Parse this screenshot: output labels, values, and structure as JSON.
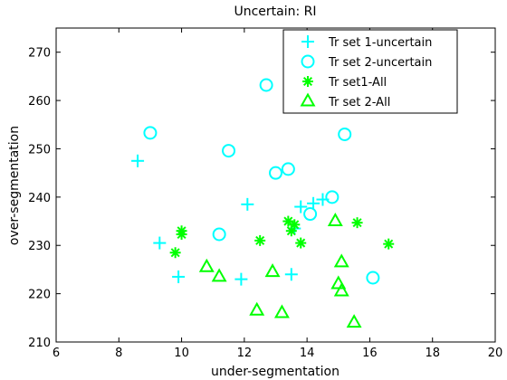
{
  "chart_data": {
    "type": "scatter",
    "title": "Uncertain: RI",
    "xlabel": "under-segmentation",
    "ylabel": "over-segmentation",
    "xlim": [
      6,
      20
    ],
    "ylim": [
      210,
      275
    ],
    "xticks": [
      "6",
      "8",
      "10",
      "12",
      "14",
      "16",
      "18",
      "20"
    ],
    "yticks": [
      "210",
      "220",
      "230",
      "240",
      "250",
      "260",
      "270"
    ],
    "grid": false,
    "legend_position": "top-right",
    "series": [
      {
        "name": "Tr set 1-uncertain",
        "marker": "plus",
        "color": "#00ffff",
        "points": [
          [
            8.6,
            247.5
          ],
          [
            9.3,
            230.5
          ],
          [
            9.9,
            223.5
          ],
          [
            11.9,
            223.0
          ],
          [
            12.1,
            238.5
          ],
          [
            13.5,
            224.0
          ],
          [
            13.6,
            233.5
          ],
          [
            13.8,
            238.0
          ],
          [
            14.2,
            238.7
          ],
          [
            14.5,
            239.5
          ]
        ]
      },
      {
        "name": "Tr set 2-uncertain",
        "marker": "circle",
        "color": "#00ffff",
        "points": [
          [
            9.0,
            253.3
          ],
          [
            11.2,
            232.3
          ],
          [
            11.5,
            249.6
          ],
          [
            12.7,
            263.2
          ],
          [
            13.0,
            245.0
          ],
          [
            13.4,
            245.8
          ],
          [
            14.1,
            236.5
          ],
          [
            14.8,
            240.0
          ],
          [
            15.2,
            253.0
          ],
          [
            16.1,
            223.3
          ]
        ]
      },
      {
        "name": "Tr set1-All",
        "marker": "asterisk",
        "color": "#00ff00",
        "points": [
          [
            9.8,
            228.5
          ],
          [
            10.0,
            232.3
          ],
          [
            10.0,
            233.0
          ],
          [
            12.5,
            231.0
          ],
          [
            13.4,
            235.0
          ],
          [
            13.5,
            233.0
          ],
          [
            13.6,
            234.3
          ],
          [
            13.8,
            230.5
          ],
          [
            15.6,
            234.7
          ],
          [
            16.6,
            230.3
          ]
        ]
      },
      {
        "name": "Tr set 2-All",
        "marker": "triangle",
        "color": "#00ff00",
        "points": [
          [
            10.8,
            225.5
          ],
          [
            11.2,
            223.5
          ],
          [
            12.4,
            216.5
          ],
          [
            12.9,
            224.5
          ],
          [
            13.2,
            216.0
          ],
          [
            14.9,
            235.0
          ],
          [
            15.0,
            222.0
          ],
          [
            15.1,
            226.5
          ],
          [
            15.1,
            220.5
          ],
          [
            15.5,
            214.0
          ]
        ]
      }
    ]
  }
}
